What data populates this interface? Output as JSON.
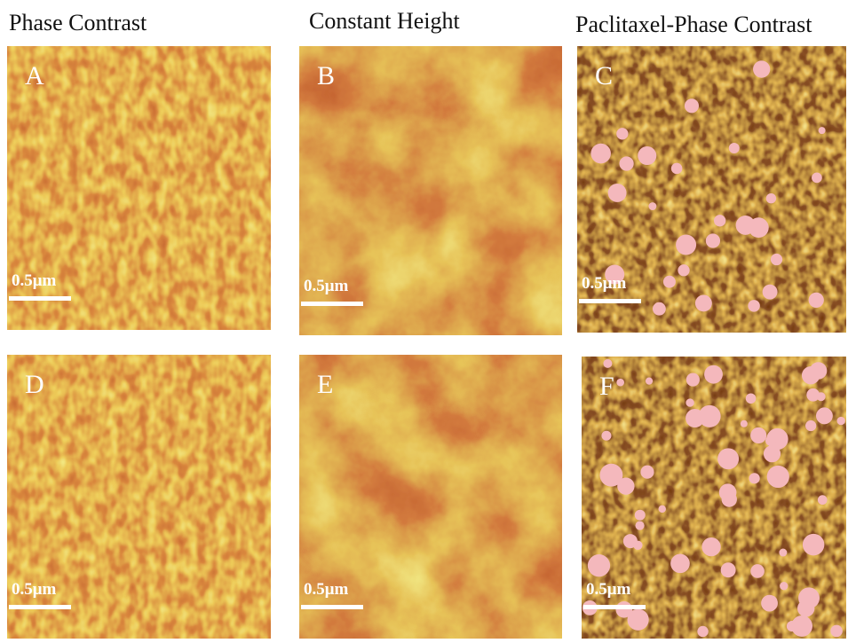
{
  "headers": [
    "Phase Contrast",
    "Constant Height",
    "Paclitaxel-Phase Contrast"
  ],
  "panels": [
    {
      "letter": "A",
      "scale_bar": "0.5μm"
    },
    {
      "letter": "B",
      "scale_bar": "0.5μm"
    },
    {
      "letter": "C",
      "scale_bar": "0.5μm"
    },
    {
      "letter": "D",
      "scale_bar": "0.5μm"
    },
    {
      "letter": "E",
      "scale_bar": "0.5μm"
    },
    {
      "letter": "F",
      "scale_bar": "0.5μm"
    }
  ]
}
